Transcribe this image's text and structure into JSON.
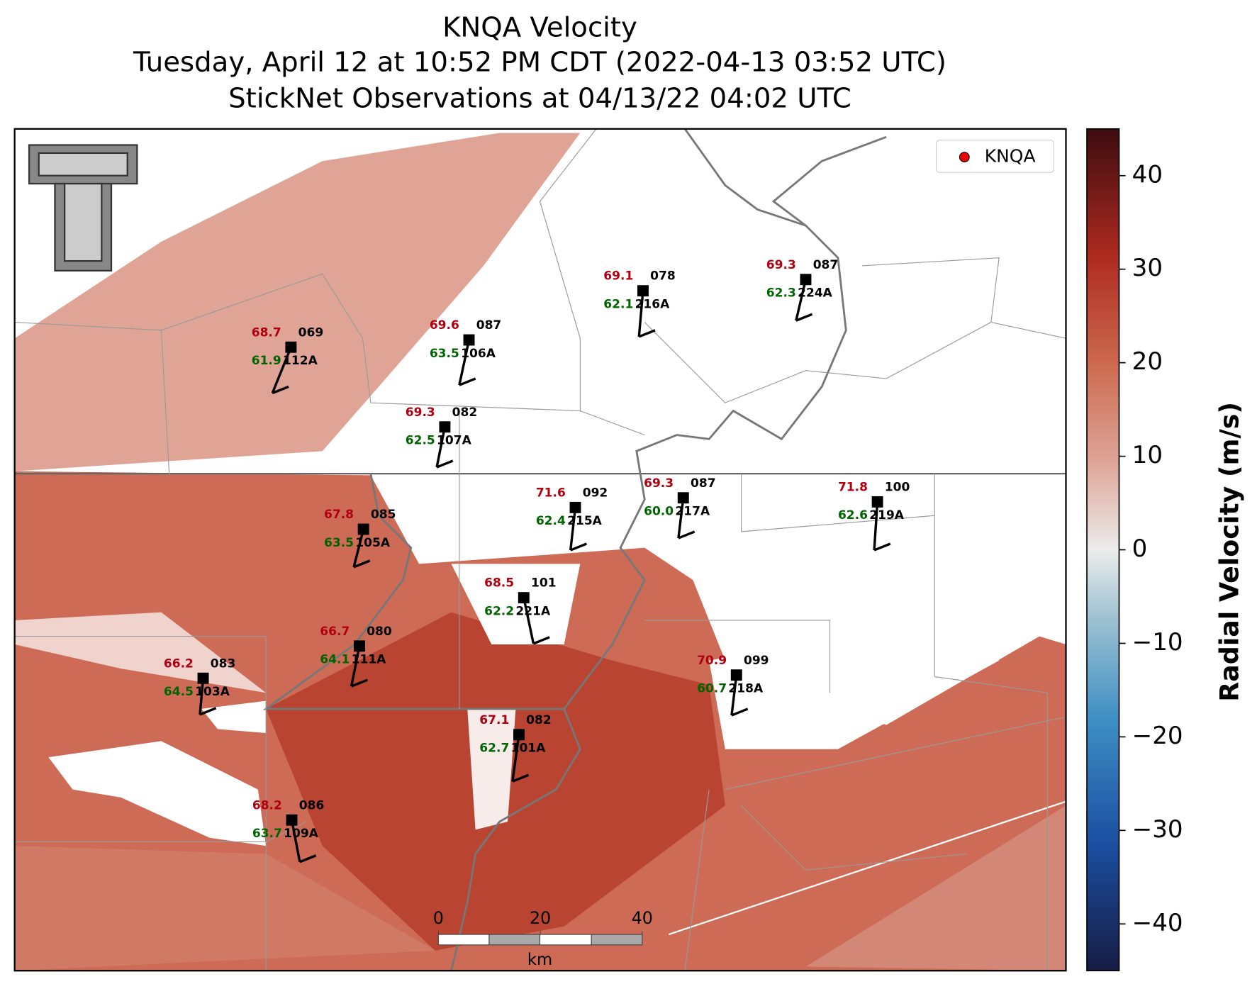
{
  "header": {
    "title": "KNQA Velocity",
    "subtitle": "Tuesday, April 12 at 10:52 PM CDT (2022-04-13 03:52 UTC)",
    "obs_line": "StickNet Observations at 04/13/22 04:02 UTC"
  },
  "legend": {
    "label": "KNQA"
  },
  "stations": [
    {
      "id": "112A",
      "temperature": "68.7",
      "dewpoint": "61.9",
      "code": "069"
    },
    {
      "id": "106A",
      "temperature": "69.6",
      "dewpoint": "63.5",
      "code": "087"
    },
    {
      "id": "216A",
      "temperature": "69.1",
      "dewpoint": "62.1",
      "code": "078"
    },
    {
      "id": "224A",
      "temperature": "69.3",
      "dewpoint": "62.3",
      "code": "087"
    },
    {
      "id": "107A",
      "temperature": "69.3",
      "dewpoint": "62.5",
      "code": "082"
    },
    {
      "id": "105A",
      "temperature": "67.8",
      "dewpoint": "63.5",
      "code": "085"
    },
    {
      "id": "215A",
      "temperature": "71.6",
      "dewpoint": "62.4",
      "code": "092"
    },
    {
      "id": "217A",
      "temperature": "69.3",
      "dewpoint": "60.0",
      "code": "087"
    },
    {
      "id": "219A",
      "temperature": "71.8",
      "dewpoint": "62.6",
      "code": "100"
    },
    {
      "id": "221A",
      "temperature": "68.5",
      "dewpoint": "62.2",
      "code": "101"
    },
    {
      "id": "111A",
      "temperature": "66.7",
      "dewpoint": "64.1",
      "code": "080"
    },
    {
      "id": "103A",
      "temperature": "66.2",
      "dewpoint": "64.5",
      "code": "083"
    },
    {
      "id": "218A",
      "temperature": "70.9",
      "dewpoint": "60.7",
      "code": "099"
    },
    {
      "id": "101A",
      "temperature": "67.1",
      "dewpoint": "62.7",
      "code": "082"
    },
    {
      "id": "109A",
      "temperature": "68.2",
      "dewpoint": "63.7",
      "code": "086"
    }
  ],
  "colorbar": {
    "label": "Radial Velocity (m/s)",
    "lim": [
      -45,
      45
    ],
    "ticks": [
      {
        "value": -40,
        "label": "−40"
      },
      {
        "value": -30,
        "label": "−30"
      },
      {
        "value": -20,
        "label": "−20"
      },
      {
        "value": -10,
        "label": "−10"
      },
      0,
      10,
      20,
      30,
      40
    ]
  },
  "scale_bar": {
    "ticks": [
      0,
      20,
      40
    ],
    "unit": "km"
  }
}
